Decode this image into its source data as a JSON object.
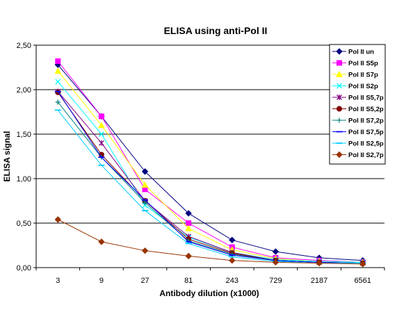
{
  "chart_data": {
    "type": "line",
    "title": "ELISA using anti-Pol II",
    "xlabel": "Antibody dilution (x1000)",
    "ylabel": "ELISA signal",
    "categories": [
      "3",
      "9",
      "27",
      "81",
      "243",
      "729",
      "2187",
      "6561"
    ],
    "ylim": [
      0,
      2.5
    ],
    "yticks": [
      "0,00",
      "0,50",
      "1,00",
      "1,50",
      "2,00",
      "2,50"
    ],
    "grid": "horizontal",
    "legend": "right",
    "series": [
      {
        "name": "Pol II un",
        "color": "#000080",
        "marker": "diamond",
        "values": [
          2.28,
          1.7,
          1.08,
          0.61,
          0.31,
          0.18,
          0.11,
          0.08
        ]
      },
      {
        "name": "Pol II S5p",
        "color": "#ff00ff",
        "marker": "square",
        "values": [
          2.32,
          1.7,
          0.88,
          0.5,
          0.23,
          0.11,
          0.08,
          0.06
        ]
      },
      {
        "name": "Pol II S7p",
        "color": "#ffff00",
        "marker": "triangle",
        "values": [
          2.21,
          1.6,
          0.93,
          0.44,
          0.2,
          0.1,
          0.07,
          0.06
        ]
      },
      {
        "name": "Pol II S2p",
        "color": "#00ffff",
        "marker": "x",
        "values": [
          2.09,
          1.5,
          0.7,
          0.34,
          0.17,
          0.09,
          0.07,
          0.06
        ]
      },
      {
        "name": "Pol II S5,7p",
        "color": "#800080",
        "marker": "star",
        "values": [
          1.98,
          1.4,
          0.75,
          0.35,
          0.17,
          0.08,
          0.06,
          0.05
        ]
      },
      {
        "name": "Pol II S5,2p",
        "color": "#800000",
        "marker": "circle",
        "values": [
          1.97,
          1.27,
          0.75,
          0.32,
          0.16,
          0.08,
          0.06,
          0.05
        ]
      },
      {
        "name": "Pol II S7,2p",
        "color": "#008080",
        "marker": "plus",
        "values": [
          1.86,
          1.24,
          0.73,
          0.3,
          0.15,
          0.08,
          0.06,
          0.05
        ]
      },
      {
        "name": "Pol II S7,5p",
        "color": "#0000ff",
        "marker": "dash",
        "values": [
          1.98,
          1.24,
          0.76,
          0.29,
          0.14,
          0.08,
          0.06,
          0.05
        ]
      },
      {
        "name": "Pol II S2,5p",
        "color": "#00ccff",
        "marker": "dash",
        "values": [
          1.77,
          1.15,
          0.64,
          0.27,
          0.12,
          0.07,
          0.05,
          0.05
        ]
      },
      {
        "name": "Pol II S2,7p",
        "color": "#993300",
        "marker": "diamond",
        "values": [
          0.54,
          0.29,
          0.19,
          0.13,
          0.08,
          0.06,
          0.05,
          0.04
        ]
      }
    ]
  }
}
